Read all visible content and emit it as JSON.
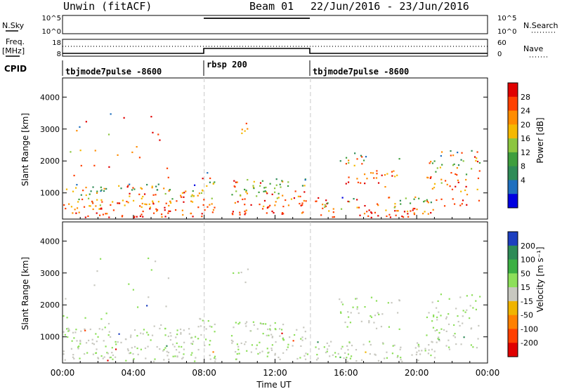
{
  "header": {
    "station": "Unwin (fitACF)",
    "beam": "Beam 01",
    "date_range": "22/Jun/2016 - 23/Jun/2016"
  },
  "left_labels": {
    "nsky": "N.Sky",
    "freq_line1": "Freq.",
    "freq_line2": "[MHz]",
    "cpid": "CPID"
  },
  "right_labels": {
    "nsearch": "N.Search",
    "nave": "Nave"
  },
  "noise_panel": {
    "y_ticks_left": [
      "10^5",
      "10^0"
    ],
    "y_ticks_right": [
      "10^5",
      "10^0"
    ]
  },
  "freq_panel": {
    "y_ticks_left": [
      "18",
      "8"
    ],
    "y_ticks_right": [
      "60",
      "0"
    ]
  },
  "cpid_segments": [
    {
      "label": "tbjmode7pulse -8600",
      "start_h": 0
    },
    {
      "label": "rbsp 200",
      "start_h": 8
    },
    {
      "label": "tbjmode7pulse -8600",
      "start_h": 14
    }
  ],
  "chart_data": [
    {
      "type": "heatmap",
      "panel": "power",
      "ylabel": "Slant Range [km]",
      "xlabel": "",
      "xlim": [
        0,
        24
      ],
      "ylim": [
        180,
        4600
      ],
      "y_ticks": [
        1000,
        2000,
        3000,
        4000
      ],
      "colorbar": {
        "label": "Power [dB]",
        "ticks": [
          "28",
          "24",
          "20",
          "16",
          "12",
          "8",
          "4"
        ],
        "colors": [
          "#e00000",
          "#ff4000",
          "#ff8c00",
          "#f5b800",
          "#8cc63f",
          "#3e9e3e",
          "#2e8b57",
          "#1e6fbf",
          "#0000e0"
        ]
      }
    },
    {
      "type": "heatmap",
      "panel": "velocity",
      "ylabel": "Slant Range [km]",
      "xlabel": "Time UT",
      "xlim": [
        0,
        24
      ],
      "ylim": [
        180,
        4600
      ],
      "y_ticks": [
        1000,
        2000,
        3000,
        4000
      ],
      "x_ticks": [
        "00:00",
        "04:00",
        "08:00",
        "12:00",
        "16:00",
        "20:00",
        "00:00"
      ],
      "colorbar": {
        "label": "Velocity [m s⁻¹]",
        "ticks": [
          "200",
          "100",
          "50",
          "15",
          "-15",
          "-50",
          "-100",
          "-200"
        ],
        "colors": [
          "#1d3fbf",
          "#2e8b57",
          "#3cb043",
          "#8ddf5a",
          "#c8c8c0",
          "#f0b400",
          "#ff8000",
          "#ff4000",
          "#e00000"
        ]
      }
    }
  ]
}
